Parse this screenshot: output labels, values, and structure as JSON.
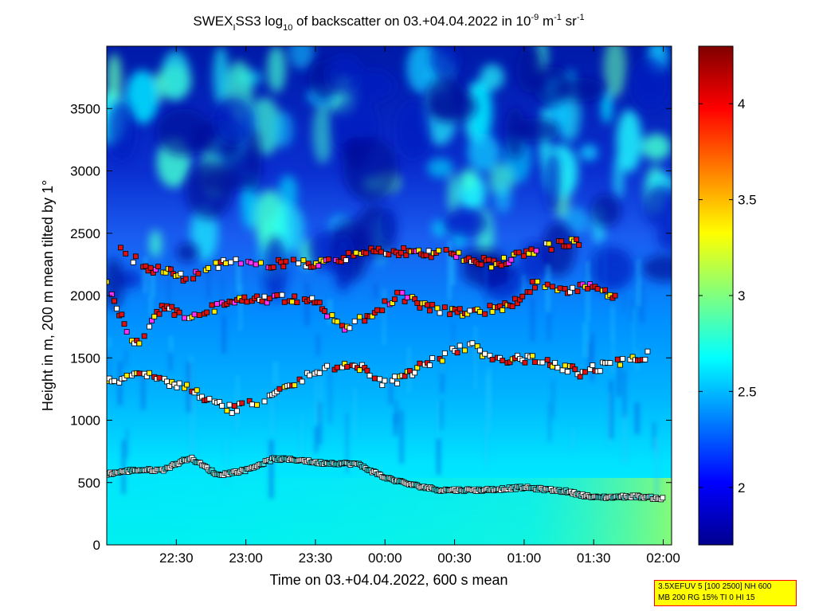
{
  "chart_data": {
    "type": "heatmap",
    "title": {
      "prefix": "SWEX",
      "sub1": "I",
      "mid": "SS3 log",
      "sub2": "10",
      "tail1": " of backscatter on 03.+04.04.2022 in 10",
      "sup1": "-9",
      "tail2": " m",
      "sup2": "-1",
      "tail3": " sr",
      "sup3": "-1"
    },
    "xlabel": "Time on 03.+04.04.2022, 600 s mean",
    "ylabel": "Height in m, 200 m mean tilted by 1°",
    "x_ticks": [
      "22:30",
      "23:00",
      "23:30",
      "00:00",
      "00:30",
      "01:00",
      "01:30",
      "02:00"
    ],
    "x_tick_hours": [
      22.5,
      23.0,
      23.5,
      24.0,
      24.5,
      25.0,
      25.5,
      26.0
    ],
    "xlim_hours": [
      22.0,
      26.06
    ],
    "y_ticks": [
      0,
      500,
      1000,
      1500,
      2000,
      2500,
      3000,
      3500
    ],
    "ylim": [
      0,
      4000
    ],
    "colorbar": {
      "ticks": [
        2,
        2.5,
        3,
        3.5,
        4
      ],
      "range": [
        1.7,
        4.3
      ],
      "colormap": "jet"
    },
    "layers": [
      {
        "name": "mixing-layer",
        "points": [
          [
            22.0,
            570
          ],
          [
            22.2,
            600
          ],
          [
            22.4,
            600
          ],
          [
            22.6,
            700
          ],
          [
            22.8,
            560
          ],
          [
            23.0,
            600
          ],
          [
            23.2,
            690
          ],
          [
            23.4,
            680
          ],
          [
            23.5,
            660
          ],
          [
            23.8,
            650
          ],
          [
            24.0,
            540
          ],
          [
            24.2,
            480
          ],
          [
            24.4,
            440
          ],
          [
            24.7,
            440
          ],
          [
            25.0,
            460
          ],
          [
            25.3,
            430
          ],
          [
            25.5,
            380
          ],
          [
            25.8,
            390
          ],
          [
            26.0,
            370
          ]
        ]
      },
      {
        "name": "lower-aerosol-layer",
        "points": [
          [
            22.0,
            1330
          ],
          [
            22.3,
            1350
          ],
          [
            22.6,
            1250
          ],
          [
            22.9,
            1080
          ],
          [
            23.2,
            1200
          ],
          [
            23.5,
            1400
          ],
          [
            23.8,
            1450
          ],
          [
            24.0,
            1280
          ],
          [
            24.3,
            1450
          ],
          [
            24.6,
            1600
          ],
          [
            24.8,
            1480
          ],
          [
            25.1,
            1500
          ],
          [
            25.4,
            1380
          ],
          [
            25.7,
            1470
          ],
          [
            25.9,
            1520
          ]
        ]
      },
      {
        "name": "middle-aerosol-layer",
        "points": [
          [
            22.0,
            2100
          ],
          [
            22.2,
            1580
          ],
          [
            22.4,
            1900
          ],
          [
            22.6,
            1830
          ],
          [
            22.9,
            1950
          ],
          [
            23.2,
            1980
          ],
          [
            23.5,
            1950
          ],
          [
            23.7,
            1720
          ],
          [
            23.9,
            1850
          ],
          [
            24.1,
            2010
          ],
          [
            24.3,
            1900
          ],
          [
            24.6,
            1850
          ],
          [
            24.9,
            1920
          ],
          [
            25.1,
            2120
          ],
          [
            25.3,
            2050
          ],
          [
            25.5,
            2080
          ],
          [
            25.7,
            1950
          ]
        ]
      },
      {
        "name": "upper-aerosol-layer",
        "points": [
          [
            22.1,
            2360
          ],
          [
            22.3,
            2220
          ],
          [
            22.6,
            2140
          ],
          [
            22.9,
            2300
          ],
          [
            23.2,
            2250
          ],
          [
            23.6,
            2260
          ],
          [
            23.9,
            2380
          ],
          [
            24.2,
            2340
          ],
          [
            24.5,
            2330
          ],
          [
            24.8,
            2250
          ],
          [
            25.1,
            2380
          ],
          [
            25.4,
            2430
          ]
        ]
      }
    ]
  },
  "info_box": {
    "line1": "3.5XEFUV 5 [100 2500] NH 600",
    "line2": "MB 200 RG 15% TI 0 HI 15"
  }
}
